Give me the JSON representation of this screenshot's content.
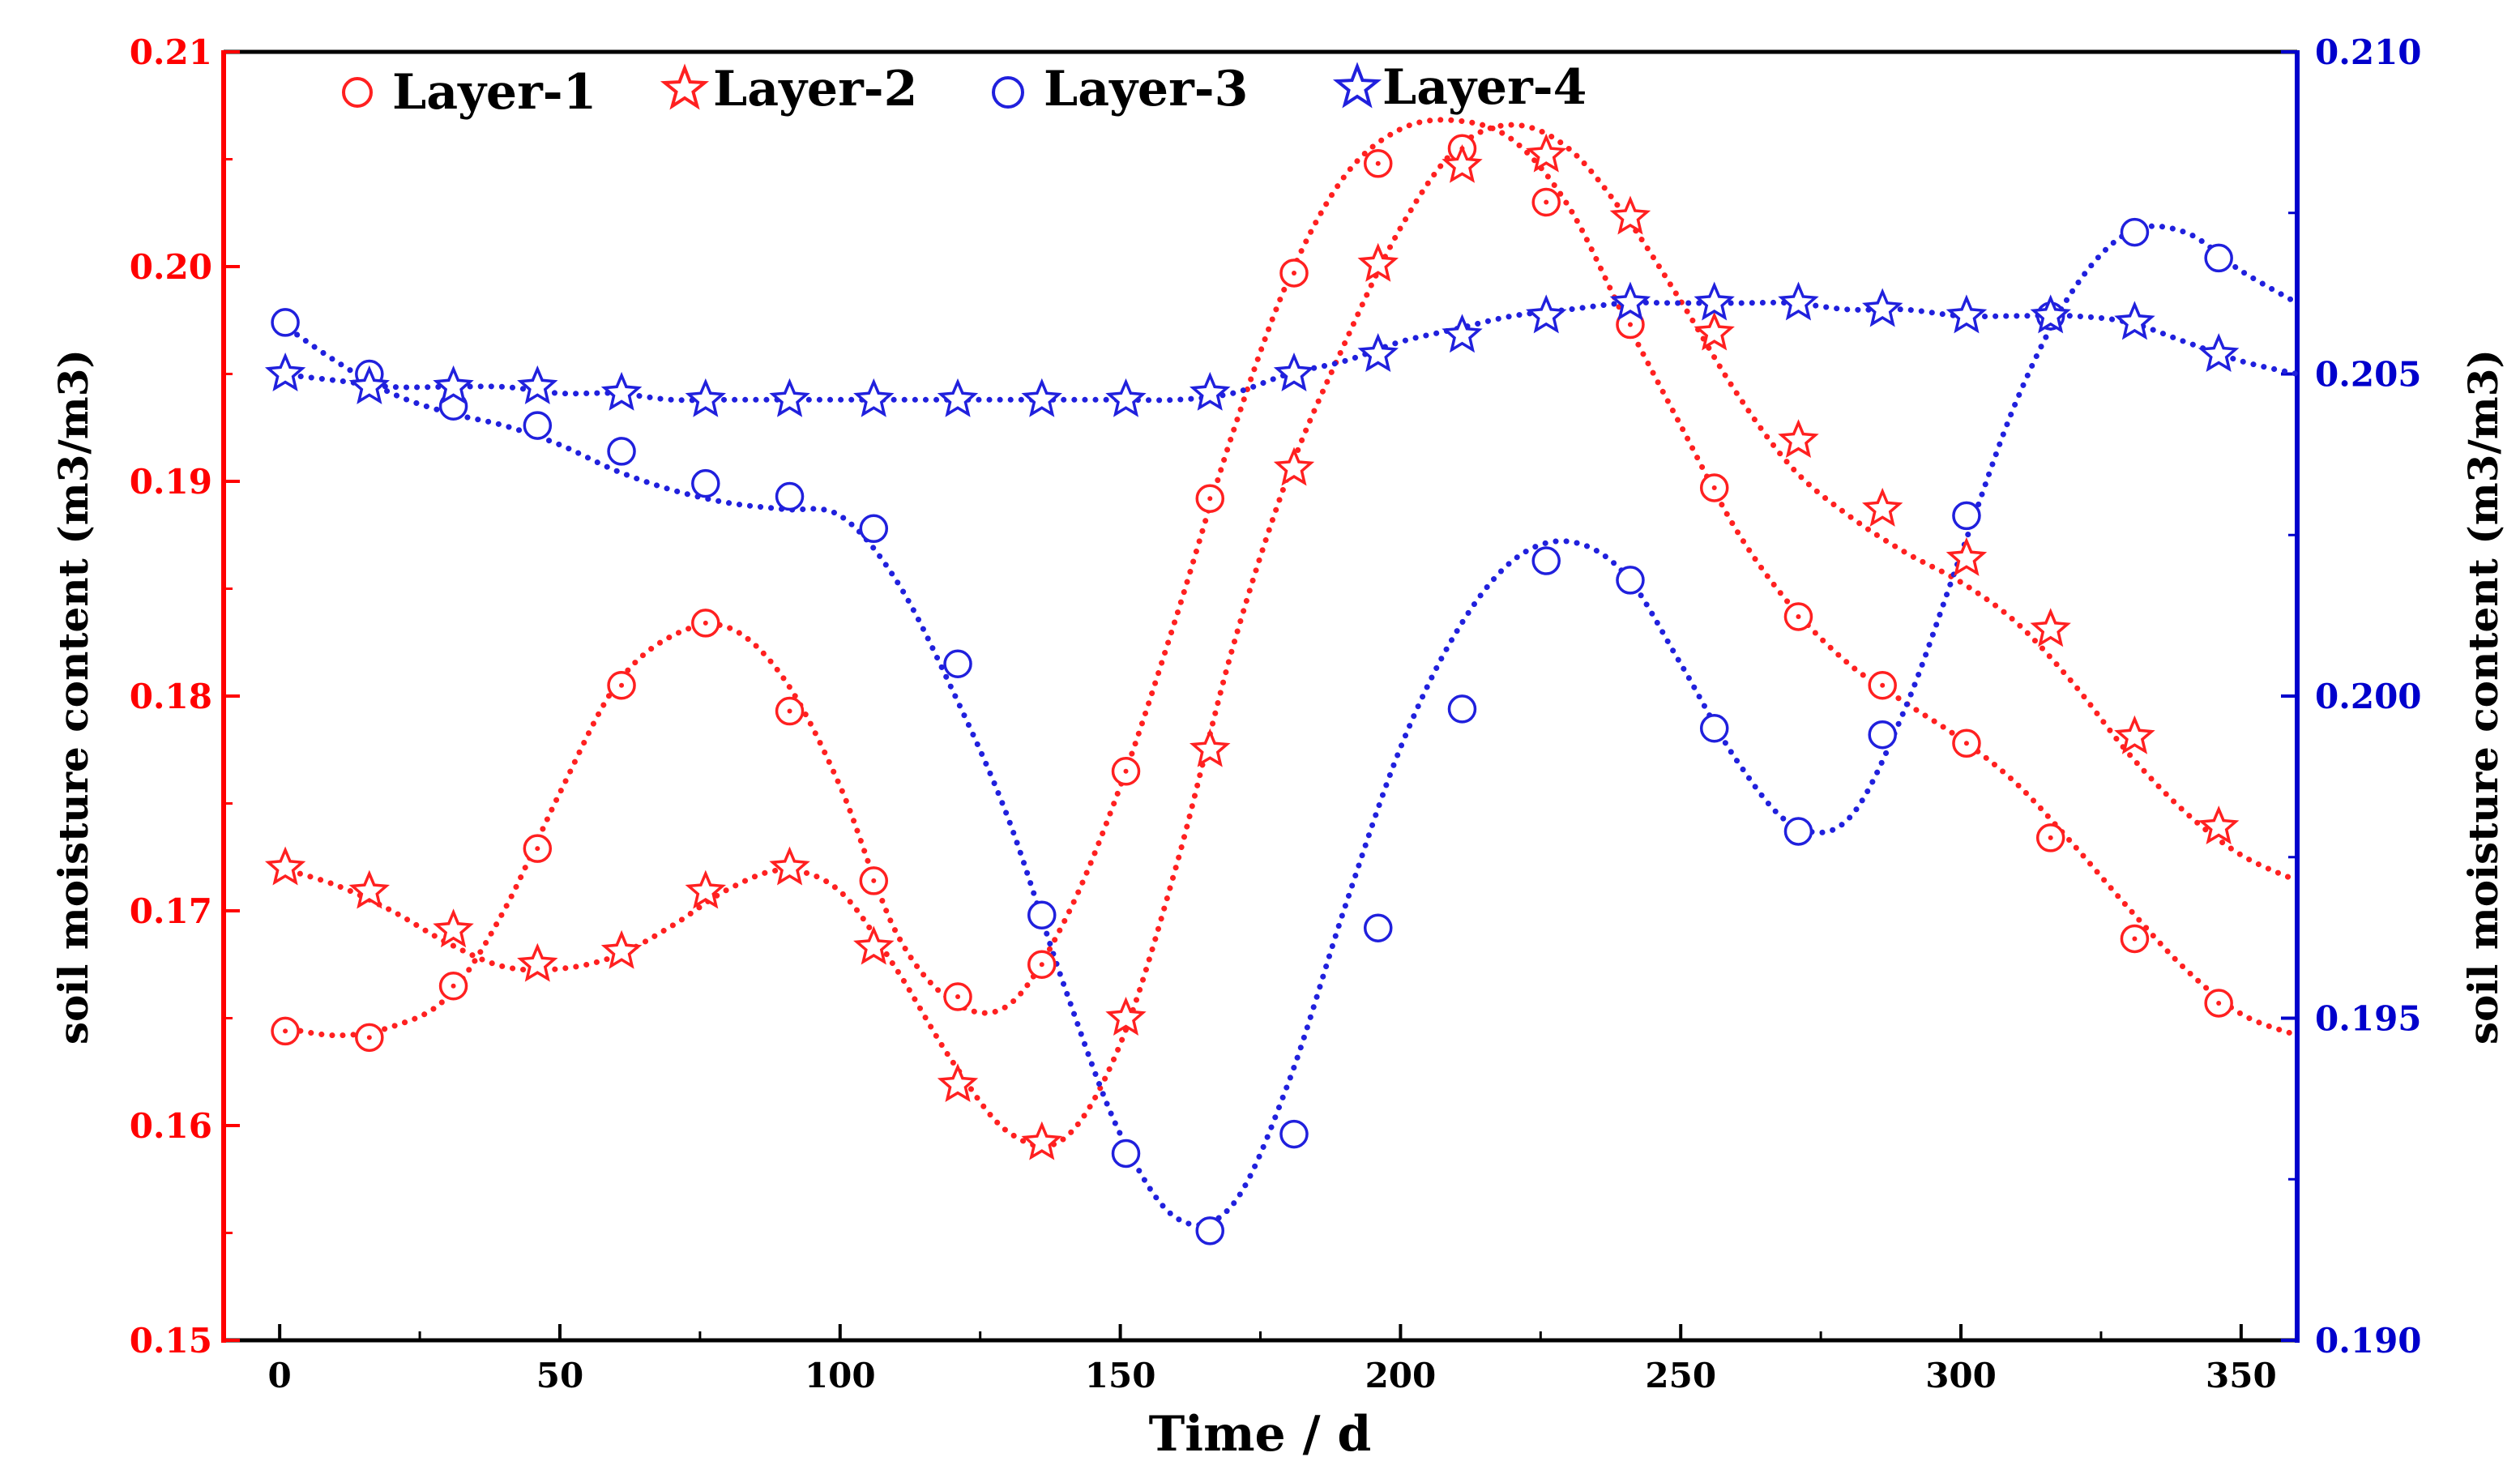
{
  "chart_data": {
    "type": "scatter",
    "xlabel": "Time / d",
    "ylabel_left": "soil moisture content (m3/m3)",
    "ylabel_right": "soil moisture content (m3/m3)",
    "xlim": [
      -10,
      360
    ],
    "ylim_left": [
      0.15,
      0.21
    ],
    "ylim_right": [
      0.19,
      0.21
    ],
    "x_ticks": [
      0,
      50,
      100,
      150,
      200,
      250,
      300,
      350
    ],
    "y_ticks_left": [
      "0.15",
      "0.16",
      "0.17",
      "0.18",
      "0.19",
      "0.20",
      "0.21"
    ],
    "y_ticks_right": [
      "0.190",
      "0.195",
      "0.200",
      "0.205",
      "0.210"
    ],
    "legend_position": "top-left",
    "colors": {
      "left_axis": "#ff0000",
      "right_axis": "#0000cc",
      "layer_red": "#ff2020",
      "layer_blue": "#2020dd"
    },
    "x": [
      1,
      16,
      31,
      46,
      61,
      76,
      91,
      106,
      121,
      136,
      151,
      166,
      181,
      196,
      211,
      226,
      241,
      256,
      271,
      286,
      301,
      316,
      331,
      346
    ],
    "series": [
      {
        "name": "Layer-1",
        "axis": "left",
        "marker": "circle-dot",
        "color": "#ff2020",
        "values": [
          0.1644,
          0.1641,
          0.1665,
          0.1729,
          0.1805,
          0.1834,
          0.1793,
          0.1714,
          0.166,
          0.1675,
          0.1765,
          0.1892,
          0.1997,
          0.2048,
          0.2055,
          0.203,
          0.1973,
          0.1897,
          0.1837,
          0.1805,
          0.1778,
          0.1734,
          0.1687,
          0.1657
        ]
      },
      {
        "name": "Layer-2",
        "axis": "left",
        "marker": "star",
        "color": "#ff2020",
        "values": [
          0.172,
          0.1709,
          0.1691,
          0.1675,
          0.1681,
          0.1709,
          0.172,
          0.1683,
          0.1619,
          0.1592,
          0.165,
          0.1775,
          0.1906,
          0.2001,
          0.2047,
          0.2052,
          0.2023,
          0.1969,
          0.1919,
          0.1887,
          0.1864,
          0.1831,
          0.1781,
          0.1739
        ]
      },
      {
        "name": "Layer-3",
        "axis": "right",
        "marker": "circle",
        "color": "#2020dd",
        "values": [
          0.2058,
          0.205,
          0.2045,
          0.2042,
          0.2038,
          0.2033,
          0.2031,
          0.2026,
          0.2005,
          0.1966,
          0.1929,
          0.1917,
          0.1932,
          0.1964,
          0.1998,
          0.2021,
          0.2018,
          0.1995,
          0.1979,
          0.1994,
          0.2028,
          0.2059,
          0.2072,
          0.2068
        ]
      },
      {
        "name": "Layer-4",
        "axis": "right",
        "marker": "star",
        "color": "#2020dd",
        "values": [
          0.205,
          0.2048,
          0.2048,
          0.2048,
          0.2047,
          0.2046,
          0.2046,
          0.2046,
          0.2046,
          0.2046,
          0.2046,
          0.2047,
          0.205,
          0.2053,
          0.2056,
          0.2059,
          0.2061,
          0.2061,
          0.2061,
          0.206,
          0.2059,
          0.2059,
          0.2058,
          0.2053
        ]
      }
    ],
    "fit_curves": [
      {
        "series": "Layer-1",
        "x": [
          0,
          10,
          20,
          30,
          40,
          50,
          60,
          70,
          80,
          90,
          100,
          110,
          120,
          130,
          140,
          150,
          160,
          170,
          180,
          190,
          200,
          210,
          220,
          230,
          240,
          250,
          260,
          270,
          280,
          290,
          300,
          310,
          320,
          330,
          340,
          350,
          360
        ],
        "values": [
          0.1646,
          0.1642,
          0.1646,
          0.166,
          0.17,
          0.1755,
          0.1805,
          0.1828,
          0.1832,
          0.1808,
          0.1758,
          0.169,
          0.1658,
          0.1656,
          0.1695,
          0.1758,
          0.1837,
          0.1922,
          0.1994,
          0.2042,
          0.2064,
          0.2068,
          0.2059,
          0.2028,
          0.1976,
          0.1926,
          0.1877,
          0.1841,
          0.1815,
          0.1797,
          0.178,
          0.1759,
          0.1731,
          0.1701,
          0.1673,
          0.1652,
          0.1642
        ]
      },
      {
        "series": "Layer-2",
        "x": [
          0,
          10,
          20,
          30,
          40,
          50,
          60,
          70,
          80,
          90,
          100,
          110,
          120,
          130,
          140,
          150,
          160,
          170,
          180,
          190,
          200,
          210,
          220,
          230,
          240,
          250,
          260,
          270,
          280,
          290,
          300,
          310,
          320,
          330,
          340,
          350,
          360
        ],
        "values": [
          0.172,
          0.1712,
          0.17,
          0.1685,
          0.1674,
          0.1673,
          0.1679,
          0.1693,
          0.171,
          0.1719,
          0.1709,
          0.1673,
          0.163,
          0.1597,
          0.1594,
          0.1638,
          0.1721,
          0.1822,
          0.1903,
          0.1964,
          0.2018,
          0.2055,
          0.2066,
          0.2055,
          0.2024,
          0.1984,
          0.1941,
          0.1906,
          0.1884,
          0.1867,
          0.1853,
          0.1834,
          0.1806,
          0.1773,
          0.1746,
          0.1726,
          0.1714
        ]
      },
      {
        "series": "Layer-3",
        "x": [
          0,
          10,
          20,
          30,
          40,
          50,
          60,
          70,
          80,
          90,
          100,
          110,
          120,
          130,
          140,
          150,
          160,
          170,
          180,
          190,
          200,
          210,
          220,
          230,
          240,
          250,
          260,
          270,
          280,
          290,
          300,
          310,
          320,
          330,
          340,
          350,
          360
        ],
        "values": [
          0.2058,
          0.2052,
          0.2047,
          0.2044,
          0.2042,
          0.2039,
          0.2035,
          0.2032,
          0.203,
          0.2029,
          0.2028,
          0.2018,
          0.2001,
          0.1981,
          0.1955,
          0.1932,
          0.1919,
          0.1921,
          0.194,
          0.1967,
          0.1992,
          0.201,
          0.2021,
          0.2024,
          0.2019,
          0.2005,
          0.199,
          0.198,
          0.1981,
          0.1998,
          0.2022,
          0.2046,
          0.2063,
          0.2072,
          0.2072,
          0.2066,
          0.2061
        ]
      },
      {
        "series": "Layer-4",
        "x": [
          0,
          10,
          20,
          30,
          40,
          50,
          60,
          70,
          80,
          90,
          100,
          110,
          120,
          130,
          140,
          150,
          160,
          170,
          180,
          190,
          200,
          210,
          220,
          230,
          240,
          250,
          260,
          270,
          280,
          290,
          300,
          310,
          320,
          330,
          340,
          350,
          360
        ],
        "values": [
          0.205,
          0.2049,
          0.2048,
          0.2048,
          0.2048,
          0.2047,
          0.2047,
          0.2046,
          0.2046,
          0.2046,
          0.2046,
          0.2046,
          0.2046,
          0.2046,
          0.2046,
          0.2046,
          0.2046,
          0.2047,
          0.205,
          0.2052,
          0.2055,
          0.2057,
          0.2059,
          0.206,
          0.2061,
          0.2061,
          0.2061,
          0.2061,
          0.206,
          0.206,
          0.2059,
          0.2059,
          0.2059,
          0.2058,
          0.2055,
          0.2052,
          0.205
        ]
      }
    ]
  }
}
